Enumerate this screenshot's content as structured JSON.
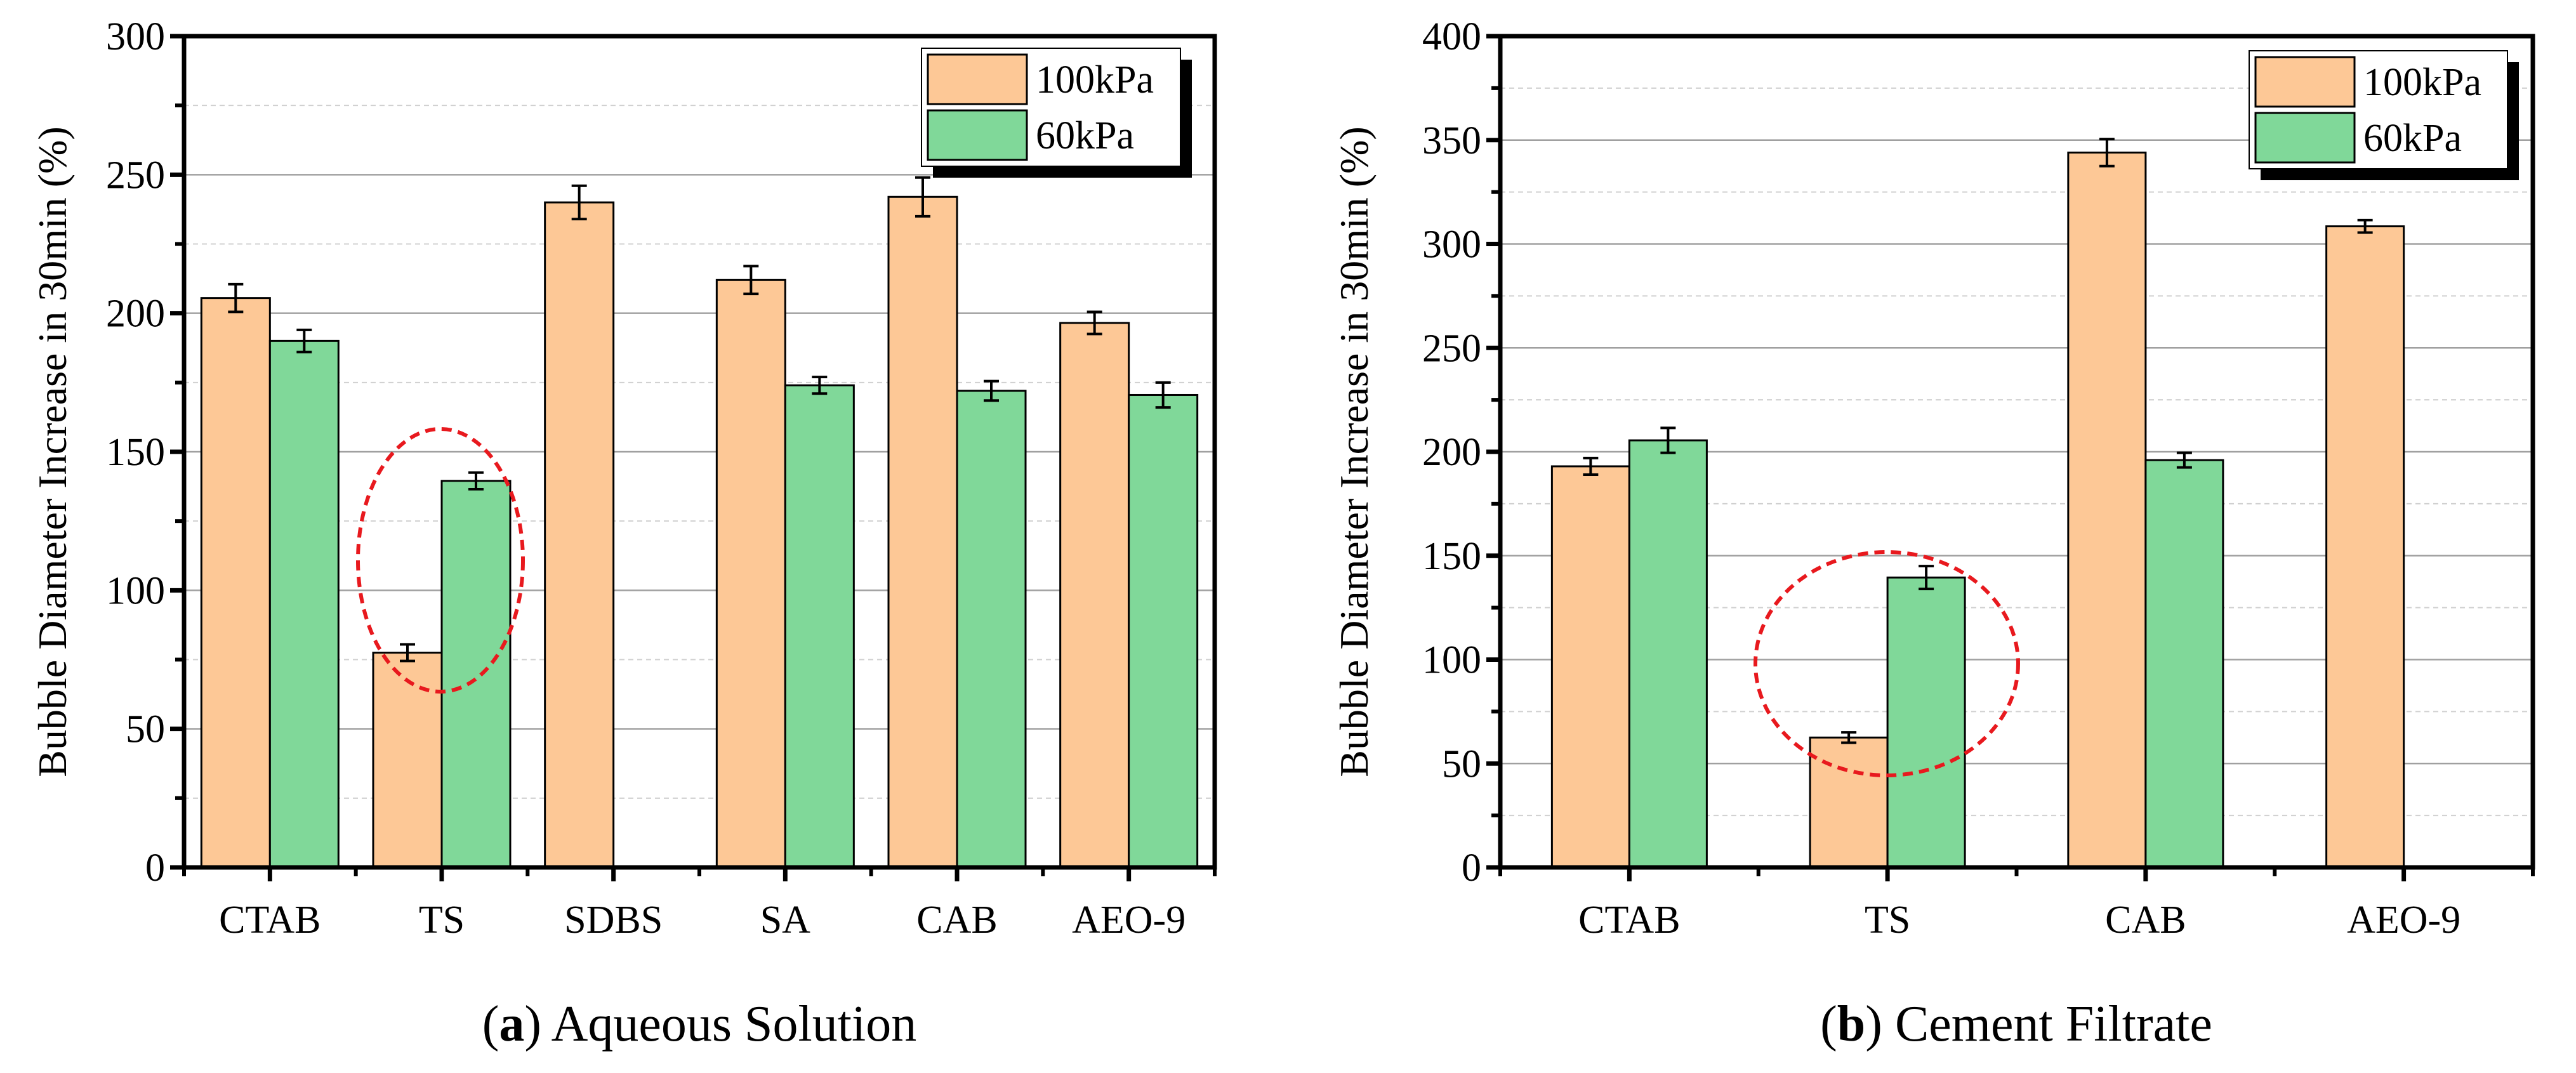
{
  "colors": {
    "series_100kPa": "#FDC896",
    "series_60kPa": "#80D899",
    "highlight": "#E8191E",
    "grid": "#A0A0A0"
  },
  "chart_data": [
    {
      "type": "bar",
      "panel_label": "a",
      "caption": "Aqueous Solution",
      "ylabel": "Bubble Diameter Increase in 30min (%)",
      "xlabel": "",
      "ylim": [
        0,
        300
      ],
      "yticks": [
        0,
        50,
        100,
        150,
        200,
        250,
        300
      ],
      "grid": true,
      "legend": "top-right",
      "categories": [
        "CTAB",
        "TS",
        "SDBS",
        "SA",
        "CAB",
        "AEO-9"
      ],
      "series": [
        {
          "name": "100kPa",
          "values": [
            205.5,
            77.5,
            240,
            212,
            242,
            196.5
          ],
          "errors": [
            5,
            3,
            6,
            5,
            7,
            4
          ]
        },
        {
          "name": "60kPa",
          "values": [
            190,
            139.5,
            null,
            174,
            172,
            170.5
          ],
          "errors": [
            4,
            3,
            null,
            3,
            3.5,
            4.5
          ]
        }
      ],
      "annotation": "dashed red ellipse around TS"
    },
    {
      "type": "bar",
      "panel_label": "b",
      "caption": "Cement Filtrate",
      "ylabel": "Bubble Diameter Increase in 30min (%)",
      "xlabel": "",
      "ylim": [
        0,
        400
      ],
      "yticks": [
        0,
        50,
        100,
        150,
        200,
        250,
        300,
        350,
        400
      ],
      "grid": true,
      "legend": "top-right",
      "categories": [
        "CTAB",
        "TS",
        "CAB",
        "AEO-9"
      ],
      "series": [
        {
          "name": "100kPa",
          "values": [
            193,
            62.5,
            344,
            308.5
          ],
          "errors": [
            4,
            2.5,
            6.5,
            3
          ]
        },
        {
          "name": "60kPa",
          "values": [
            205.5,
            139.5,
            196,
            null
          ],
          "errors": [
            6,
            5.5,
            3.5,
            null
          ]
        }
      ],
      "annotation": "dashed red ellipse around TS"
    }
  ]
}
